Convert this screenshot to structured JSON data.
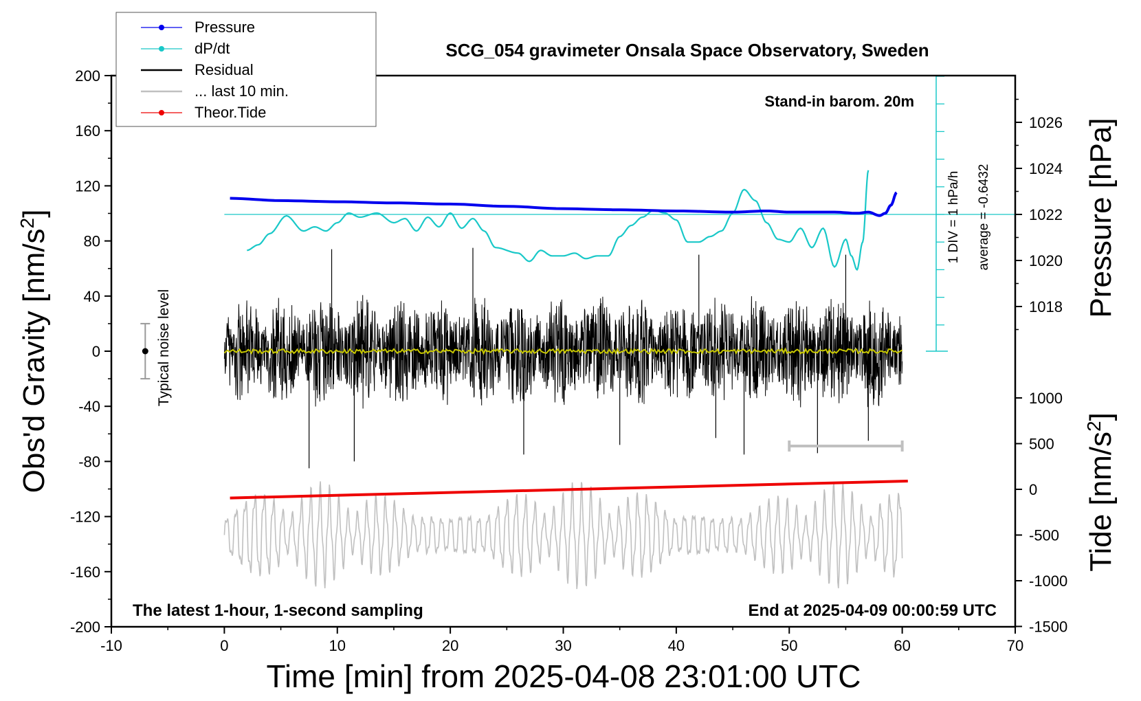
{
  "chart_data": {
    "type": "line",
    "title": "SCG_054 gravimeter Onsala Space Observatory, Sweden",
    "xlabel": "Time [min] from 2025-04-08 23:01:00 UTC",
    "xlim": [
      -10,
      70
    ],
    "x_ticks": [
      "-10",
      "0",
      "10",
      "20",
      "30",
      "40",
      "50",
      "60",
      "70"
    ],
    "y_left": {
      "label": "Obs'd Gravity [nm/s",
      "label_sup": "2",
      "label_end": "]",
      "ylim": [
        -200,
        200
      ],
      "ticks": [
        "200",
        "160",
        "120",
        "80",
        "40",
        "0",
        "-40",
        "-80",
        "-120",
        "-160",
        "-200"
      ]
    },
    "y_right_pressure": {
      "label": "Pressure [hPa]",
      "ticks": [
        "1026",
        "1024",
        "1022",
        "1020",
        "1018"
      ]
    },
    "y_right_tide": {
      "label": "Tide [nm/s",
      "label_sup": "2",
      "label_end": "]",
      "ticks": [
        "1000",
        "500",
        "0",
        "-500",
        "-1000",
        "-1500"
      ]
    },
    "legend": {
      "placement": "top-left",
      "entries": [
        {
          "name": "Pressure",
          "color": "#0000ee"
        },
        {
          "name": "dP/dt",
          "color": "#19c8c8"
        },
        {
          "name": "Residual",
          "color": "#000000"
        },
        {
          "name": "... last 10 min.",
          "color": "#c0c0c0"
        },
        {
          "name": "Theor.Tide",
          "color": "#ee0000"
        }
      ]
    },
    "annotations": {
      "barometer": "Stand-in barom. 20m",
      "noise_label": "Typical noise level",
      "div_label": "1 DIV = 1 hPa/h",
      "average_label": "average = -0.6432",
      "bottom_left": "The latest 1-hour, 1-second sampling",
      "bottom_right": "End at 2025-04-09 00:00:59 UTC"
    },
    "noise_level": {
      "x": -7,
      "center": 0,
      "half_range": 20
    },
    "last_10_min_span": [
      50,
      60
    ],
    "series": [
      {
        "name": "Pressure",
        "color": "#0000ee",
        "x": [
          0.5,
          5,
          10,
          15,
          20,
          25,
          30,
          35,
          40,
          45,
          48,
          50,
          52,
          54,
          56,
          57,
          58,
          58.5,
          59,
          59.5
        ],
        "y": [
          1022.7,
          1022.6,
          1022.55,
          1022.5,
          1022.45,
          1022.35,
          1022.25,
          1022.2,
          1022.15,
          1022.1,
          1022.15,
          1022.1,
          1022.1,
          1022.1,
          1022.05,
          1022.1,
          1021.95,
          1022.05,
          1022.4,
          1022.95
        ]
      },
      {
        "name": "dP/dt",
        "color": "#19c8c8",
        "x": [
          2,
          3,
          4,
          5.5,
          7,
          8,
          9,
          10,
          11,
          12,
          13.5,
          15,
          16,
          17,
          18,
          19,
          20,
          21,
          22,
          23,
          24,
          26,
          27,
          28,
          29,
          30,
          31,
          32,
          33,
          34,
          35,
          36,
          37,
          38,
          39,
          40,
          41,
          42,
          43,
          44,
          45,
          46,
          47,
          48,
          49,
          50,
          51,
          52,
          53,
          54,
          55,
          55.5,
          56,
          56.5,
          57
        ],
        "y": [
          -1.3,
          -1.1,
          -0.7,
          -0.05,
          -0.6,
          -0.45,
          -0.6,
          -0.3,
          0.05,
          -0.1,
          0.05,
          -0.3,
          -0.15,
          -0.6,
          -0.1,
          -0.45,
          0.05,
          -0.5,
          -0.15,
          -0.6,
          -1.2,
          -1.4,
          -1.7,
          -1.3,
          -1.5,
          -1.5,
          -1.4,
          -1.6,
          -1.5,
          -1.5,
          -0.8,
          -0.4,
          -0.1,
          0.15,
          0.05,
          -0.2,
          -1.0,
          -1.0,
          -0.8,
          -0.6,
          0.05,
          0.9,
          0.5,
          -0.3,
          -0.9,
          -1.0,
          -0.5,
          -1.2,
          -0.5,
          -1.9,
          -0.9,
          -1.5,
          -2.0,
          -1.0,
          1.6
        ]
      },
      {
        "name": "Residual",
        "color": "#000000",
        "x_range": [
          0,
          60
        ],
        "envelope_nms2": 45,
        "spikes": [
          [
            7.5,
            -85
          ],
          [
            9.5,
            74
          ],
          [
            11.5,
            -80
          ],
          [
            22,
            75
          ],
          [
            26.5,
            -75
          ],
          [
            35,
            -68
          ],
          [
            42,
            70
          ],
          [
            43.5,
            -63
          ],
          [
            46,
            -75
          ],
          [
            52.5,
            -74
          ],
          [
            55,
            70
          ],
          [
            57,
            -65
          ]
        ]
      },
      {
        "name": "Mean (yellow)",
        "color": "#c8c800",
        "x_range": [
          0,
          60
        ],
        "y": 0
      },
      {
        "name": "... last 10 min.",
        "color": "#c0c0c0",
        "x_range": [
          0,
          60
        ],
        "amplitude_range_nms2": [
          -1400,
          600
        ]
      },
      {
        "name": "Theor.Tide",
        "color": "#ee0000",
        "x": [
          0.5,
          60.5
        ],
        "y": [
          -95,
          90
        ]
      }
    ]
  }
}
